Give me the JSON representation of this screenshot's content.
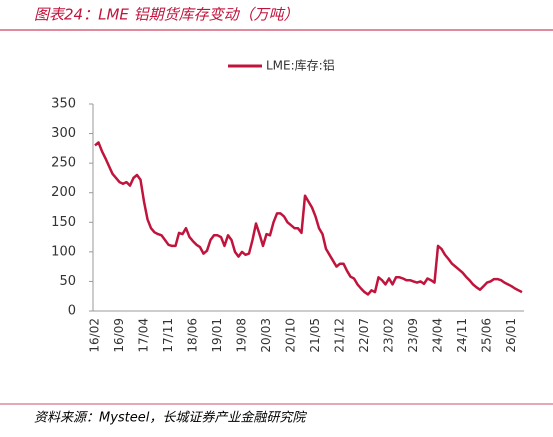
{
  "chart_data": {
    "type": "line",
    "title": "图表24：LME 铝期货库存变动（万吨）",
    "source": "资料来源：Mysteel，长城证券产业金融研究院",
    "categories": [
      "16/02",
      null,
      null,
      null,
      null,
      null,
      null,
      "16/09",
      null,
      null,
      null,
      null,
      null,
      null,
      "17/04",
      null,
      null,
      null,
      null,
      null,
      null,
      "17/11",
      null,
      null,
      null,
      null,
      null,
      null,
      "18/06",
      null,
      null,
      null,
      null,
      null,
      null,
      "19/01",
      null,
      null,
      null,
      null,
      null,
      null,
      "19/08",
      null,
      null,
      null,
      null,
      null,
      null,
      "20/03",
      null,
      null,
      null,
      null,
      null,
      null,
      "20/10",
      null,
      null,
      null,
      null,
      null,
      null,
      "21/05",
      null,
      null,
      null,
      null,
      null,
      null,
      "21/12",
      null,
      null,
      null,
      null,
      null,
      null,
      "22/07",
      null,
      null,
      null,
      null,
      null,
      null,
      "23/02",
      null,
      null,
      null,
      null,
      null,
      null,
      "23/09",
      null,
      null,
      null,
      null,
      null,
      null,
      "24/04",
      null,
      null,
      null,
      null,
      null,
      null,
      "24/11",
      null,
      null,
      null,
      null,
      null,
      null,
      "25/06",
      null,
      null,
      null,
      null,
      null,
      null,
      "26/01",
      null,
      null,
      null
    ],
    "series": [
      {
        "name": "LME:库存:铝",
        "color": "#c0143c",
        "values": [
          280,
          285,
          270,
          258,
          245,
          232,
          225,
          218,
          215,
          218,
          212,
          225,
          230,
          222,
          185,
          155,
          140,
          133,
          130,
          128,
          120,
          112,
          110,
          110,
          132,
          130,
          140,
          125,
          118,
          112,
          108,
          97,
          102,
          120,
          128,
          128,
          125,
          110,
          128,
          120,
          100,
          92,
          100,
          95,
          97,
          120,
          148,
          130,
          110,
          130,
          128,
          150,
          165,
          165,
          160,
          150,
          145,
          140,
          140,
          132,
          195,
          185,
          175,
          160,
          140,
          130,
          105,
          95,
          85,
          75,
          80,
          80,
          68,
          58,
          55,
          45,
          38,
          32,
          28,
          35,
          32,
          57,
          52,
          45,
          55,
          45,
          57,
          57,
          55,
          52,
          52,
          50,
          48,
          50,
          46,
          55,
          52,
          48,
          110,
          105,
          95,
          88,
          80,
          75,
          70,
          65,
          58,
          52,
          45,
          40,
          36,
          42,
          48,
          50,
          54,
          54,
          52,
          48,
          45,
          42,
          38,
          35,
          32
        ]
      }
    ],
    "ylim": [
      0,
      350
    ],
    "yticks": [
      0,
      50,
      100,
      150,
      200,
      250,
      300,
      350
    ],
    "legend": "top"
  }
}
